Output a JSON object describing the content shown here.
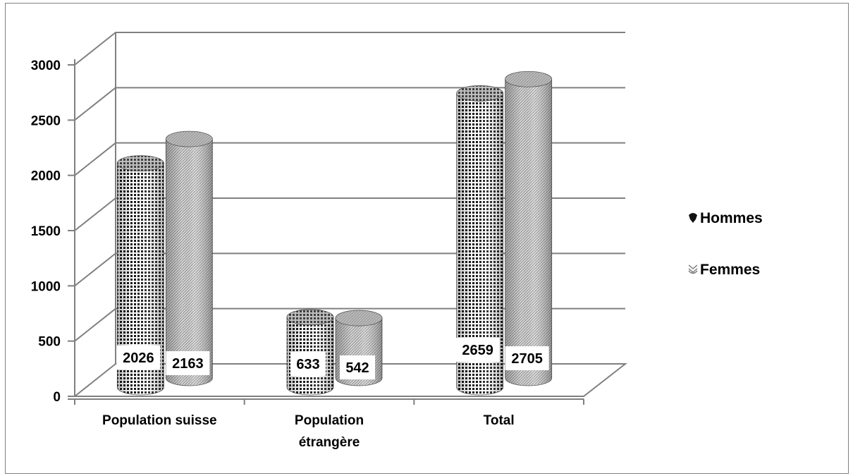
{
  "chart_data": {
    "type": "bar",
    "style": "3d-cylinder",
    "categories": [
      "Population suisse",
      "Population étrangère",
      "Total"
    ],
    "series": [
      {
        "name": "Hommes",
        "values": [
          2026,
          633,
          2659
        ],
        "pattern": "dots"
      },
      {
        "name": "Femmes",
        "values": [
          2163,
          542,
          2705
        ],
        "pattern": "hatch"
      }
    ],
    "y_ticks": [
      0,
      500,
      1000,
      1500,
      2000,
      2500,
      3000
    ],
    "ylim": [
      0,
      3000
    ],
    "grid": true,
    "legend_position": "right",
    "data_labels": true,
    "colors": {
      "axis": "#808080",
      "grid": "#808080",
      "hommes_base": "#3a3a3a",
      "femmes_base": "#b5b5b5"
    }
  }
}
